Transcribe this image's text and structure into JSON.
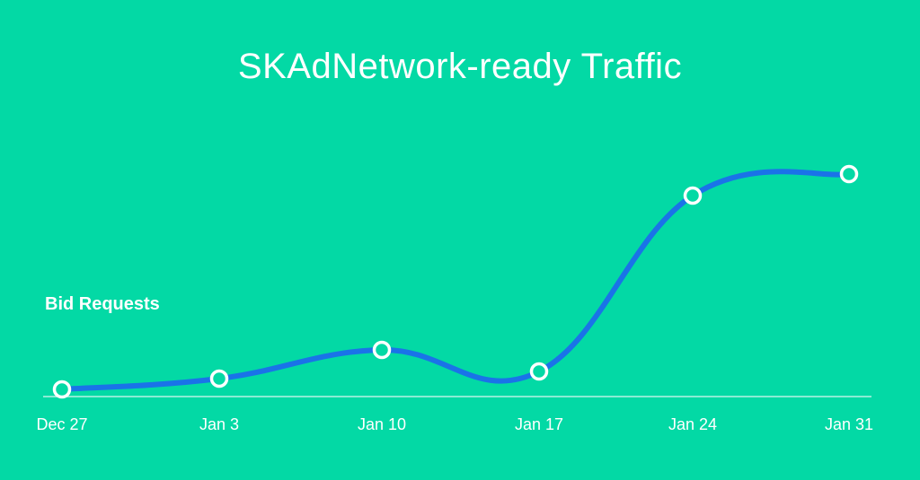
{
  "chart_data": {
    "type": "line",
    "title": "SKAdNetwork-ready Traffic",
    "ylabel": "Bid Requests",
    "xlabel": "",
    "categories": [
      "Dec 27",
      "Jan 3",
      "Jan 10",
      "Jan 17",
      "Jan 24",
      "Jan 31"
    ],
    "series": [
      {
        "values": [
          2,
          5,
          13,
          7,
          56,
          62
        ]
      }
    ],
    "ylim": [
      0,
      100
    ],
    "grid": false,
    "colors": {
      "background": "#03d9a5",
      "line": "#1a73e8",
      "marker_stroke": "#ffffff",
      "axis": "#b8f3e3",
      "text": "#ffffff"
    }
  }
}
